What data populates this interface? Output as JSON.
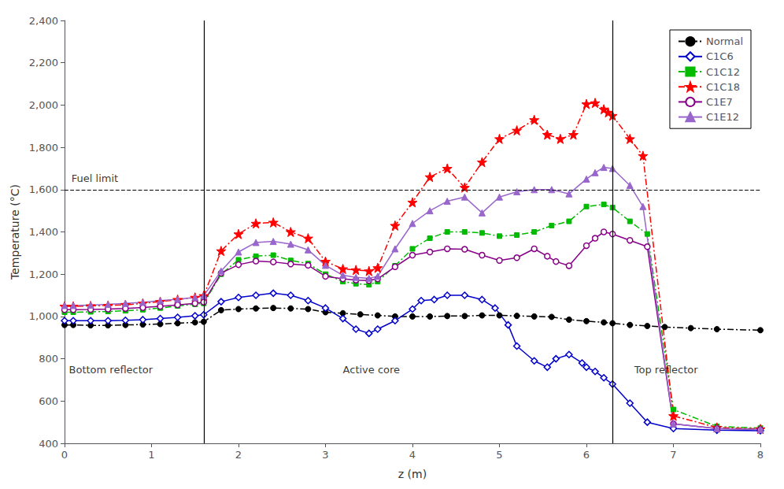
{
  "chart_data": {
    "type": "line",
    "xlabel": "z (m)",
    "ylabel": "Temperature (°C)",
    "xlim": [
      0,
      8
    ],
    "ylim": [
      400,
      2400
    ],
    "xticks": [
      0,
      1,
      2,
      3,
      4,
      5,
      6,
      7,
      8
    ],
    "yticks": [
      400,
      600,
      800,
      1000,
      1200,
      1400,
      1600,
      1800,
      2000,
      2200,
      2400
    ],
    "grid": false,
    "legend": "upper right",
    "hlines": [
      1600
    ],
    "vlines": [
      1.6,
      6.3
    ],
    "annotations": [
      {
        "text": "Bottom reflector",
        "x": 0.05,
        "y": 750
      },
      {
        "text": "Active core",
        "x": 3.2,
        "y": 750
      },
      {
        "text": "Top reflector",
        "x": 6.55,
        "y": 750
      },
      {
        "text": "Fuel limit",
        "x": 0.08,
        "y": 1630
      }
    ],
    "series": [
      {
        "name": "Normal",
        "color": "#000000",
        "line_style": "dashdot",
        "marker": "circle",
        "x": [
          0.0,
          0.1,
          0.3,
          0.5,
          0.7,
          0.9,
          1.1,
          1.3,
          1.5,
          1.6,
          1.8,
          2.0,
          2.2,
          2.4,
          2.6,
          2.8,
          3.0,
          3.2,
          3.4,
          3.6,
          3.8,
          4.0,
          4.2,
          4.4,
          4.6,
          4.8,
          5.0,
          5.2,
          5.4,
          5.6,
          5.8,
          6.0,
          6.2,
          6.3,
          6.5,
          6.7,
          6.9,
          7.2,
          7.5,
          8.0
        ],
        "values": [
          960,
          960,
          958,
          958,
          960,
          962,
          964,
          968,
          972,
          975,
          1030,
          1035,
          1038,
          1040,
          1038,
          1035,
          1020,
          1015,
          1010,
          1005,
          1000,
          1000,
          1000,
          1002,
          1002,
          1005,
          1005,
          1003,
          1000,
          998,
          985,
          978,
          972,
          968,
          960,
          955,
          950,
          945,
          940,
          935
        ]
      },
      {
        "name": "C1C6",
        "color": "#0000cc",
        "line_style": "solid",
        "marker": "hollow_diamond",
        "x": [
          0.0,
          0.1,
          0.3,
          0.5,
          0.7,
          0.9,
          1.1,
          1.3,
          1.5,
          1.6,
          1.8,
          2.0,
          2.2,
          2.4,
          2.6,
          2.8,
          3.0,
          3.2,
          3.35,
          3.5,
          3.6,
          3.8,
          4.0,
          4.1,
          4.25,
          4.4,
          4.6,
          4.8,
          4.95,
          5.1,
          5.2,
          5.4,
          5.55,
          5.65,
          5.8,
          5.95,
          6.0,
          6.1,
          6.2,
          6.3,
          6.5,
          6.7,
          7.0,
          7.5,
          8.0
        ],
        "values": [
          980,
          980,
          980,
          980,
          982,
          985,
          990,
          996,
          1003,
          1008,
          1070,
          1090,
          1100,
          1110,
          1100,
          1075,
          1040,
          990,
          940,
          920,
          940,
          980,
          1035,
          1075,
          1080,
          1100,
          1100,
          1080,
          1040,
          960,
          860,
          790,
          760,
          800,
          820,
          780,
          760,
          740,
          710,
          680,
          590,
          500,
          470,
          462,
          460
        ]
      },
      {
        "name": "C1C12",
        "color": "#00bb00",
        "line_style": "dashdot",
        "marker": "square",
        "x": [
          0.0,
          0.1,
          0.3,
          0.5,
          0.7,
          0.9,
          1.1,
          1.3,
          1.5,
          1.6,
          1.8,
          2.0,
          2.2,
          2.4,
          2.6,
          2.8,
          3.0,
          3.2,
          3.35,
          3.5,
          3.6,
          3.8,
          4.0,
          4.2,
          4.4,
          4.6,
          4.8,
          5.0,
          5.2,
          5.4,
          5.6,
          5.8,
          6.0,
          6.2,
          6.3,
          6.5,
          6.7,
          7.0,
          7.5,
          8.0
        ],
        "values": [
          1020,
          1020,
          1022,
          1024,
          1027,
          1032,
          1040,
          1050,
          1058,
          1062,
          1200,
          1268,
          1285,
          1290,
          1265,
          1250,
          1200,
          1165,
          1155,
          1150,
          1165,
          1240,
          1320,
          1370,
          1400,
          1400,
          1395,
          1380,
          1385,
          1400,
          1430,
          1450,
          1520,
          1530,
          1515,
          1450,
          1390,
          560,
          480,
          472
        ]
      },
      {
        "name": "C1C18",
        "color": "#ff0000",
        "line_style": "dashdot",
        "marker": "star",
        "x": [
          0.0,
          0.1,
          0.3,
          0.5,
          0.7,
          0.9,
          1.1,
          1.3,
          1.5,
          1.6,
          1.8,
          2.0,
          2.2,
          2.4,
          2.6,
          2.8,
          3.0,
          3.2,
          3.35,
          3.5,
          3.6,
          3.8,
          4.0,
          4.2,
          4.4,
          4.6,
          4.8,
          5.0,
          5.2,
          5.4,
          5.55,
          5.7,
          5.85,
          6.0,
          6.1,
          6.2,
          6.25,
          6.3,
          6.5,
          6.65,
          7.0,
          7.5,
          8.0
        ],
        "values": [
          1048,
          1048,
          1050,
          1052,
          1055,
          1062,
          1070,
          1080,
          1090,
          1098,
          1310,
          1390,
          1440,
          1445,
          1400,
          1370,
          1260,
          1225,
          1220,
          1215,
          1230,
          1430,
          1540,
          1660,
          1700,
          1610,
          1730,
          1840,
          1880,
          1930,
          1860,
          1840,
          1860,
          2005,
          2010,
          1980,
          1965,
          1950,
          1840,
          1760,
          530,
          475,
          468
        ]
      },
      {
        "name": "C1E7",
        "color": "#880088",
        "line_style": "solid",
        "marker": "hollow_circle",
        "x": [
          0.0,
          0.1,
          0.3,
          0.5,
          0.7,
          0.9,
          1.1,
          1.3,
          1.5,
          1.6,
          1.8,
          2.0,
          2.2,
          2.4,
          2.6,
          2.8,
          3.0,
          3.2,
          3.35,
          3.5,
          3.6,
          3.8,
          4.0,
          4.2,
          4.4,
          4.6,
          4.8,
          5.0,
          5.2,
          5.4,
          5.55,
          5.65,
          5.8,
          6.0,
          6.1,
          6.2,
          6.3,
          6.5,
          6.7,
          7.0,
          7.5,
          8.0
        ],
        "values": [
          1032,
          1032,
          1033,
          1035,
          1038,
          1042,
          1048,
          1055,
          1062,
          1068,
          1205,
          1245,
          1262,
          1258,
          1248,
          1242,
          1190,
          1178,
          1172,
          1170,
          1178,
          1235,
          1290,
          1305,
          1320,
          1318,
          1290,
          1265,
          1278,
          1320,
          1285,
          1260,
          1240,
          1335,
          1370,
          1400,
          1390,
          1360,
          1330,
          492,
          470,
          465
        ]
      },
      {
        "name": "C1E12",
        "color": "#9966cc",
        "line_style": "solid",
        "marker": "triangle",
        "x": [
          0.0,
          0.1,
          0.3,
          0.5,
          0.7,
          0.9,
          1.1,
          1.3,
          1.5,
          1.6,
          1.8,
          2.0,
          2.2,
          2.4,
          2.6,
          2.8,
          3.0,
          3.2,
          3.35,
          3.5,
          3.6,
          3.8,
          4.0,
          4.2,
          4.4,
          4.6,
          4.8,
          5.0,
          5.2,
          5.4,
          5.6,
          5.8,
          6.0,
          6.1,
          6.2,
          6.3,
          6.5,
          6.65,
          7.0,
          7.5,
          8.0
        ],
        "values": [
          1052,
          1052,
          1054,
          1057,
          1062,
          1067,
          1075,
          1082,
          1090,
          1098,
          1215,
          1305,
          1350,
          1355,
          1342,
          1315,
          1242,
          1195,
          1185,
          1180,
          1190,
          1320,
          1440,
          1500,
          1545,
          1565,
          1490,
          1565,
          1590,
          1600,
          1600,
          1580,
          1650,
          1680,
          1705,
          1700,
          1620,
          1520,
          492,
          470,
          465
        ]
      }
    ]
  }
}
